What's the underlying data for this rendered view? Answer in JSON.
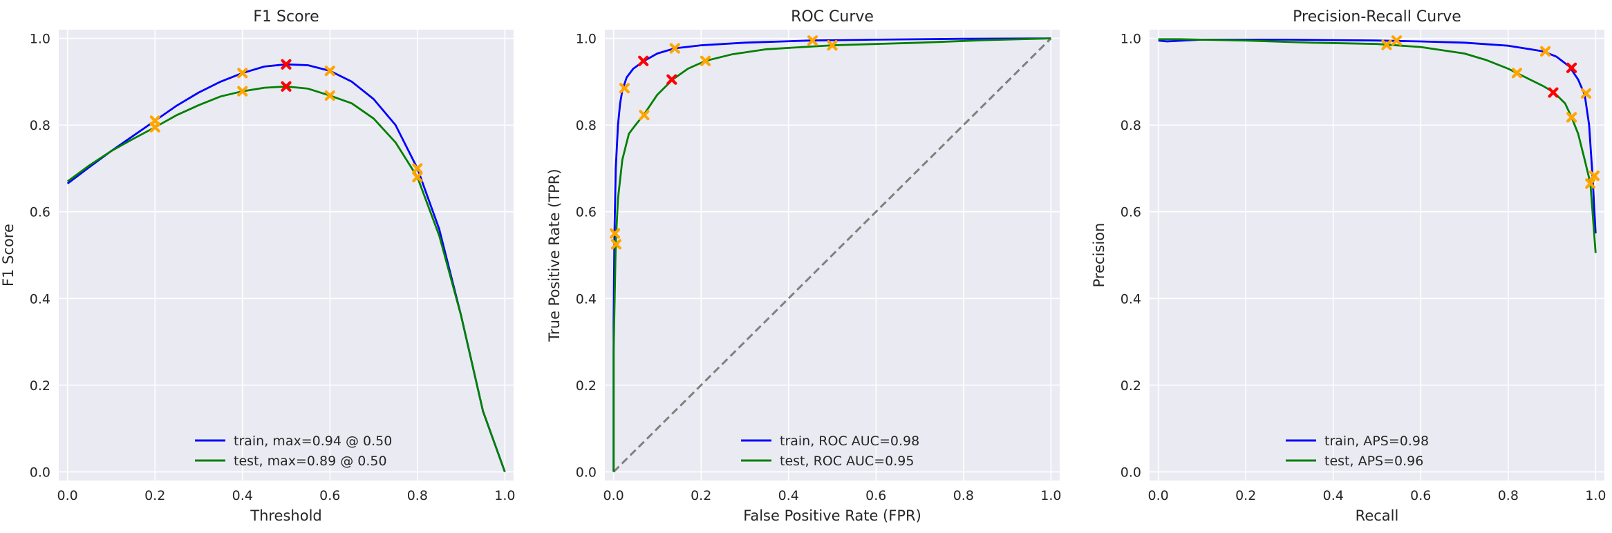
{
  "chart_data": [
    {
      "type": "line",
      "title": "F1 Score",
      "xlabel": "Threshold",
      "ylabel": "F1 Score",
      "xlim": [
        -0.02,
        1.02
      ],
      "ylim": [
        -0.02,
        1.02
      ],
      "xticks": [
        "0.0",
        "0.2",
        "0.4",
        "0.6",
        "0.8",
        "1.0"
      ],
      "yticks": [
        "0.0",
        "0.2",
        "0.4",
        "0.6",
        "0.8",
        "1.0"
      ],
      "grid": true,
      "legend_position": "lower center",
      "series": [
        {
          "name": "train, max=0.94 @ 0.50",
          "color": "#0000ff",
          "x": [
            0.0,
            0.05,
            0.1,
            0.15,
            0.2,
            0.25,
            0.3,
            0.35,
            0.4,
            0.45,
            0.5,
            0.55,
            0.6,
            0.65,
            0.7,
            0.75,
            0.8,
            0.85,
            0.9,
            0.95,
            1.0
          ],
          "y": [
            0.665,
            0.703,
            0.74,
            0.775,
            0.81,
            0.845,
            0.875,
            0.9,
            0.92,
            0.935,
            0.94,
            0.938,
            0.925,
            0.9,
            0.86,
            0.8,
            0.7,
            0.56,
            0.36,
            0.14,
            0.0
          ],
          "markers": [
            {
              "x": 0.5,
              "y": 0.94,
              "kind": "optimal"
            },
            {
              "x": 0.2,
              "y": 0.81,
              "kind": "threshold"
            },
            {
              "x": 0.4,
              "y": 0.92,
              "kind": "threshold"
            },
            {
              "x": 0.6,
              "y": 0.925,
              "kind": "threshold"
            },
            {
              "x": 0.8,
              "y": 0.7,
              "kind": "threshold"
            }
          ]
        },
        {
          "name": "test, max=0.89 @ 0.50",
          "color": "#008000",
          "x": [
            0.0,
            0.05,
            0.1,
            0.15,
            0.2,
            0.25,
            0.3,
            0.35,
            0.4,
            0.45,
            0.5,
            0.55,
            0.6,
            0.65,
            0.7,
            0.75,
            0.8,
            0.85,
            0.9,
            0.95,
            1.0
          ],
          "y": [
            0.67,
            0.707,
            0.74,
            0.768,
            0.795,
            0.823,
            0.846,
            0.866,
            0.878,
            0.886,
            0.889,
            0.884,
            0.868,
            0.85,
            0.815,
            0.76,
            0.68,
            0.545,
            0.36,
            0.14,
            0.0
          ],
          "markers": [
            {
              "x": 0.5,
              "y": 0.889,
              "kind": "optimal"
            },
            {
              "x": 0.2,
              "y": 0.795,
              "kind": "threshold"
            },
            {
              "x": 0.4,
              "y": 0.878,
              "kind": "threshold"
            },
            {
              "x": 0.6,
              "y": 0.868,
              "kind": "threshold"
            },
            {
              "x": 0.8,
              "y": 0.68,
              "kind": "threshold"
            }
          ]
        }
      ]
    },
    {
      "type": "line",
      "title": "ROC Curve",
      "xlabel": "False Positive Rate (FPR)",
      "ylabel": "True Positive Rate (TPR)",
      "xlim": [
        -0.02,
        1.02
      ],
      "ylim": [
        -0.02,
        1.02
      ],
      "xticks": [
        "0.0",
        "0.2",
        "0.4",
        "0.6",
        "0.8",
        "1.0"
      ],
      "yticks": [
        "0.0",
        "0.2",
        "0.4",
        "0.6",
        "0.8",
        "1.0"
      ],
      "grid": true,
      "legend_position": "lower center",
      "diagonal": {
        "color": "#808080",
        "style": "dashed"
      },
      "series": [
        {
          "name": "train, ROC AUC=0.98",
          "color": "#0000ff",
          "x": [
            0.0,
            0.0,
            0.002,
            0.005,
            0.01,
            0.015,
            0.02,
            0.03,
            0.045,
            0.07,
            0.1,
            0.14,
            0.2,
            0.3,
            0.45,
            0.6,
            0.8,
            1.0
          ],
          "y": [
            0.0,
            0.34,
            0.55,
            0.7,
            0.8,
            0.85,
            0.88,
            0.91,
            0.93,
            0.948,
            0.965,
            0.977,
            0.984,
            0.99,
            0.995,
            0.997,
            0.999,
            1.0
          ],
          "markers": [
            {
              "x": 0.068,
              "y": 0.948,
              "kind": "optimal"
            },
            {
              "x": 0.003,
              "y": 0.55,
              "kind": "threshold"
            },
            {
              "x": 0.025,
              "y": 0.885,
              "kind": "threshold"
            },
            {
              "x": 0.14,
              "y": 0.977,
              "kind": "threshold"
            },
            {
              "x": 0.455,
              "y": 0.995,
              "kind": "threshold"
            }
          ]
        },
        {
          "name": "test, ROC AUC=0.95",
          "color": "#008000",
          "x": [
            0.0,
            0.0,
            0.005,
            0.01,
            0.02,
            0.035,
            0.05,
            0.07,
            0.1,
            0.135,
            0.17,
            0.21,
            0.27,
            0.35,
            0.5,
            0.7,
            0.85,
            1.0
          ],
          "y": [
            0.0,
            0.28,
            0.53,
            0.63,
            0.72,
            0.78,
            0.8,
            0.825,
            0.87,
            0.905,
            0.93,
            0.948,
            0.963,
            0.975,
            0.984,
            0.99,
            0.996,
            1.0
          ],
          "markers": [
            {
              "x": 0.133,
              "y": 0.905,
              "kind": "optimal"
            },
            {
              "x": 0.006,
              "y": 0.525,
              "kind": "threshold"
            },
            {
              "x": 0.07,
              "y": 0.823,
              "kind": "threshold"
            },
            {
              "x": 0.21,
              "y": 0.948,
              "kind": "threshold"
            },
            {
              "x": 0.5,
              "y": 0.984,
              "kind": "threshold"
            }
          ]
        }
      ]
    },
    {
      "type": "line",
      "title": "Precision-Recall Curve",
      "xlabel": "Recall",
      "ylabel": "Precision",
      "xlim": [
        -0.02,
        1.02
      ],
      "ylim": [
        -0.02,
        1.02
      ],
      "xticks": [
        "0.0",
        "0.2",
        "0.4",
        "0.6",
        "0.8",
        "1.0"
      ],
      "yticks": [
        "0.0",
        "0.2",
        "0.4",
        "0.6",
        "0.8",
        "1.0"
      ],
      "grid": true,
      "legend_position": "lower center",
      "series": [
        {
          "name": "train, APS=0.98",
          "color": "#0000ff",
          "x": [
            0.0,
            0.02,
            0.1,
            0.3,
            0.5,
            0.6,
            0.7,
            0.8,
            0.85,
            0.88,
            0.91,
            0.94,
            0.96,
            0.975,
            0.985,
            0.993,
            1.0
          ],
          "y": [
            0.995,
            0.993,
            0.997,
            0.997,
            0.995,
            0.993,
            0.99,
            0.983,
            0.975,
            0.97,
            0.958,
            0.935,
            0.905,
            0.87,
            0.8,
            0.68,
            0.55
          ],
          "markers": [
            {
              "x": 0.945,
              "y": 0.932,
              "kind": "optimal"
            },
            {
              "x": 0.885,
              "y": 0.97,
              "kind": "threshold"
            },
            {
              "x": 0.545,
              "y": 0.995,
              "kind": "threshold"
            },
            {
              "x": 0.978,
              "y": 0.873,
              "kind": "threshold"
            },
            {
              "x": 0.997,
              "y": 0.683,
              "kind": "threshold"
            }
          ]
        },
        {
          "name": "test, APS=0.96",
          "color": "#008000",
          "x": [
            0.0,
            0.05,
            0.2,
            0.35,
            0.5,
            0.6,
            0.7,
            0.75,
            0.8,
            0.85,
            0.88,
            0.905,
            0.93,
            0.945,
            0.96,
            0.975,
            0.988,
            1.0
          ],
          "y": [
            0.998,
            0.998,
            0.995,
            0.99,
            0.987,
            0.98,
            0.965,
            0.95,
            0.93,
            0.905,
            0.89,
            0.875,
            0.85,
            0.818,
            0.78,
            0.72,
            0.665,
            0.505
          ],
          "markers": [
            {
              "x": 0.903,
              "y": 0.875,
              "kind": "optimal"
            },
            {
              "x": 0.522,
              "y": 0.985,
              "kind": "threshold"
            },
            {
              "x": 0.82,
              "y": 0.92,
              "kind": "threshold"
            },
            {
              "x": 0.945,
              "y": 0.818,
              "kind": "threshold"
            },
            {
              "x": 0.988,
              "y": 0.665,
              "kind": "threshold"
            }
          ]
        }
      ]
    }
  ],
  "style": {
    "axes_background": "#eaeaf2",
    "grid_color": "#ffffff",
    "text_color": "#262626",
    "optimal_marker_color": "#ff0000",
    "threshold_marker_color": "#ffa500"
  }
}
